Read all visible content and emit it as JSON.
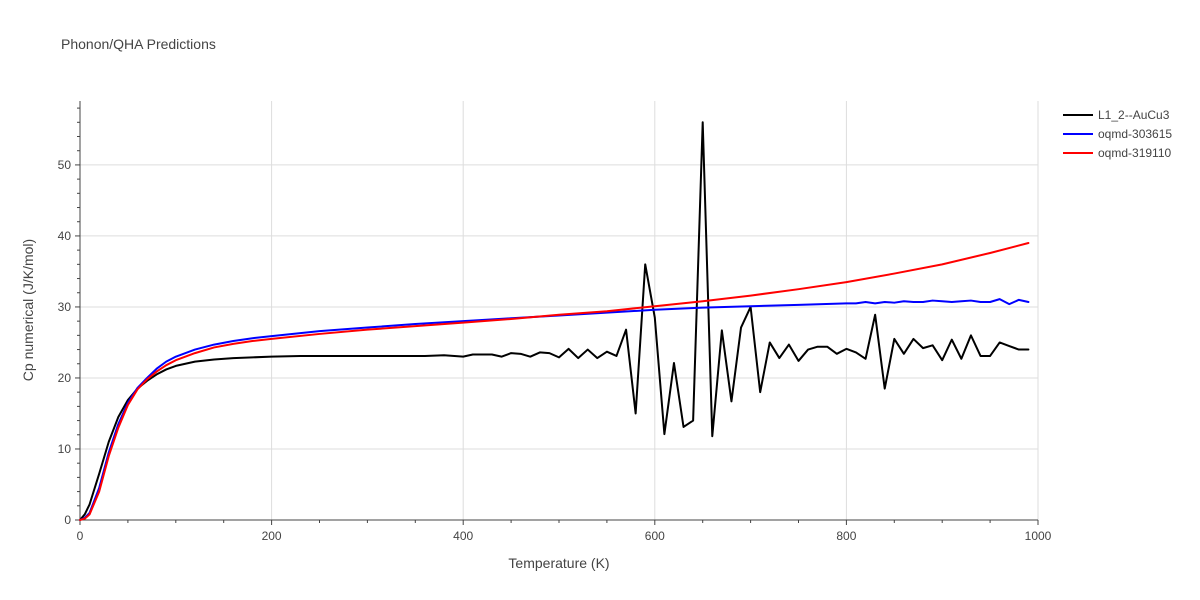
{
  "chart_data": {
    "type": "line",
    "title": "Phonon/QHA Predictions",
    "xlabel": "Temperature (K)",
    "ylabel": "Cp numerical (J/K/mol)",
    "xlim": [
      0,
      1000
    ],
    "ylim": [
      0,
      59
    ],
    "xticks": [
      0,
      200,
      400,
      600,
      800,
      1000
    ],
    "yticks": [
      0,
      10,
      20,
      30,
      40,
      50
    ],
    "grid": true,
    "legend_position": "top-right",
    "series": [
      {
        "name": "L1_2--AuCu3",
        "color": "#000000",
        "x": [
          0,
          5,
          10,
          20,
          30,
          40,
          50,
          60,
          70,
          80,
          90,
          100,
          120,
          140,
          160,
          180,
          200,
          230,
          260,
          300,
          330,
          360,
          380,
          400,
          410,
          420,
          430,
          440,
          450,
          460,
          470,
          480,
          490,
          500,
          510,
          520,
          530,
          540,
          550,
          560,
          570,
          580,
          590,
          600,
          610,
          620,
          630,
          640,
          650,
          660,
          670,
          680,
          690,
          700,
          710,
          720,
          730,
          740,
          750,
          760,
          770,
          780,
          790,
          800,
          810,
          820,
          830,
          840,
          850,
          860,
          870,
          880,
          890,
          900,
          910,
          920,
          930,
          940,
          950,
          960,
          970,
          980,
          990
        ],
        "values": [
          0,
          0.8,
          2.2,
          6.5,
          11.0,
          14.5,
          16.9,
          18.5,
          19.6,
          20.5,
          21.2,
          21.7,
          22.3,
          22.6,
          22.8,
          22.9,
          23.0,
          23.1,
          23.1,
          23.1,
          23.1,
          23.1,
          23.2,
          23.0,
          23.3,
          23.3,
          23.3,
          23.0,
          23.5,
          23.4,
          23.0,
          23.6,
          23.5,
          22.9,
          24.1,
          22.8,
          24.0,
          22.8,
          23.7,
          23.1,
          26.8,
          15.0,
          36.0,
          28.5,
          12.1,
          22.1,
          13.1,
          14.0,
          56.0,
          11.8,
          26.7,
          16.7,
          27.1,
          30.0,
          18.0,
          25.0,
          22.8,
          24.7,
          22.4,
          24.0,
          24.4,
          24.4,
          23.4,
          24.1,
          23.6,
          22.7,
          28.9,
          18.5,
          25.5,
          23.4,
          25.5,
          24.2,
          24.6,
          22.5,
          25.4,
          22.7,
          26.0,
          23.1,
          23.1,
          25.0,
          24.5,
          24.0,
          24.0
        ]
      },
      {
        "name": "oqmd-303615",
        "color": "#0000ff",
        "x": [
          0,
          5,
          10,
          20,
          30,
          40,
          50,
          60,
          70,
          80,
          90,
          100,
          120,
          140,
          160,
          180,
          200,
          250,
          300,
          350,
          400,
          450,
          500,
          550,
          600,
          650,
          700,
          750,
          800,
          810,
          820,
          830,
          840,
          850,
          860,
          870,
          880,
          890,
          900,
          910,
          920,
          930,
          940,
          950,
          960,
          970,
          980,
          990
        ],
        "values": [
          0,
          0.3,
          1.0,
          4.5,
          9.5,
          13.5,
          16.5,
          18.6,
          20.0,
          21.3,
          22.3,
          23.0,
          24.0,
          24.7,
          25.2,
          25.6,
          25.9,
          26.6,
          27.1,
          27.6,
          28.0,
          28.4,
          28.8,
          29.2,
          29.6,
          29.9,
          30.1,
          30.3,
          30.5,
          30.5,
          30.7,
          30.5,
          30.7,
          30.6,
          30.8,
          30.7,
          30.7,
          30.9,
          30.8,
          30.7,
          30.8,
          30.9,
          30.7,
          30.7,
          31.1,
          30.4,
          31.0,
          30.7
        ]
      },
      {
        "name": "oqmd-319110",
        "color": "#ff0000",
        "x": [
          0,
          5,
          10,
          20,
          30,
          40,
          50,
          60,
          70,
          80,
          90,
          100,
          120,
          140,
          160,
          180,
          200,
          250,
          300,
          350,
          400,
          450,
          500,
          550,
          600,
          650,
          700,
          750,
          800,
          850,
          900,
          950,
          990
        ],
        "values": [
          0,
          0.2,
          0.8,
          4.0,
          9.0,
          13.0,
          16.2,
          18.4,
          19.8,
          20.9,
          21.8,
          22.5,
          23.5,
          24.3,
          24.8,
          25.2,
          25.5,
          26.2,
          26.8,
          27.3,
          27.8,
          28.3,
          28.9,
          29.4,
          30.1,
          30.8,
          31.6,
          32.5,
          33.5,
          34.7,
          36.0,
          37.6,
          39.0
        ]
      }
    ]
  }
}
